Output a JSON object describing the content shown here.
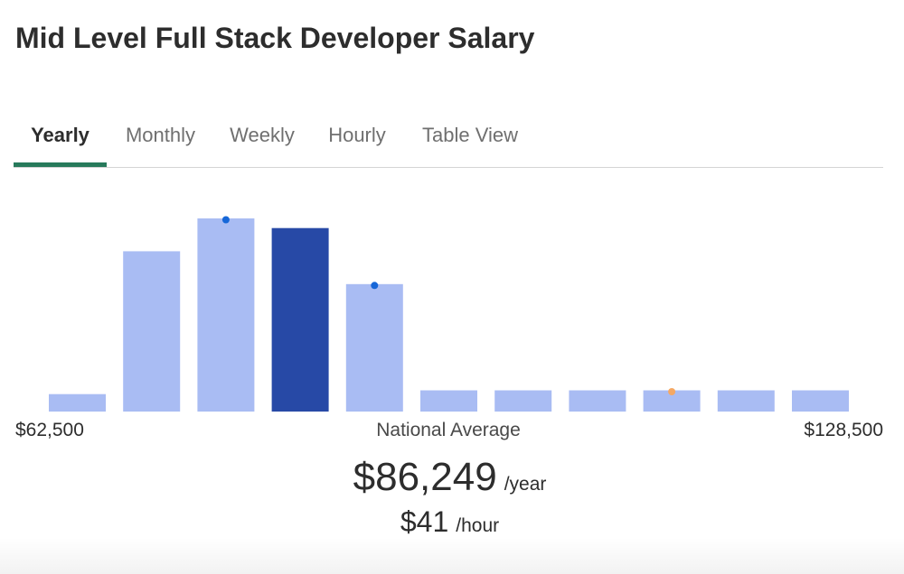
{
  "page_title": "Mid Level Full Stack Developer Salary",
  "tabs": [
    {
      "label": "Yearly",
      "active": true
    },
    {
      "label": "Monthly",
      "active": false
    },
    {
      "label": "Weekly",
      "active": false
    },
    {
      "label": "Hourly",
      "active": false
    },
    {
      "label": "Table View",
      "active": false
    }
  ],
  "colors": {
    "accent": "#277a5b",
    "bar": "#a9bcf3",
    "bar_highlight": "#2749a6",
    "marker_blue": "#1667d8",
    "marker_orange": "#f5a864"
  },
  "chart_data": {
    "type": "bar",
    "categories": [
      "1",
      "2",
      "3",
      "4",
      "5",
      "6",
      "7",
      "8",
      "9",
      "10",
      "11"
    ],
    "values": [
      9,
      83,
      100,
      95,
      66,
      11,
      11,
      11,
      11,
      11,
      11
    ],
    "highlight_index": 3,
    "markers": [
      {
        "index": 2,
        "color": "blue"
      },
      {
        "index": 4,
        "color": "blue"
      },
      {
        "index": 8,
        "color": "orange"
      }
    ],
    "min_label": "$62,500",
    "center_label": "National Average",
    "max_label": "$128,500",
    "ylim": [
      0,
      100
    ],
    "grid": false
  },
  "salary": {
    "yearly_amount": "$86,249",
    "yearly_unit": "/year",
    "hourly_amount": "$41",
    "hourly_unit": "/hour"
  }
}
